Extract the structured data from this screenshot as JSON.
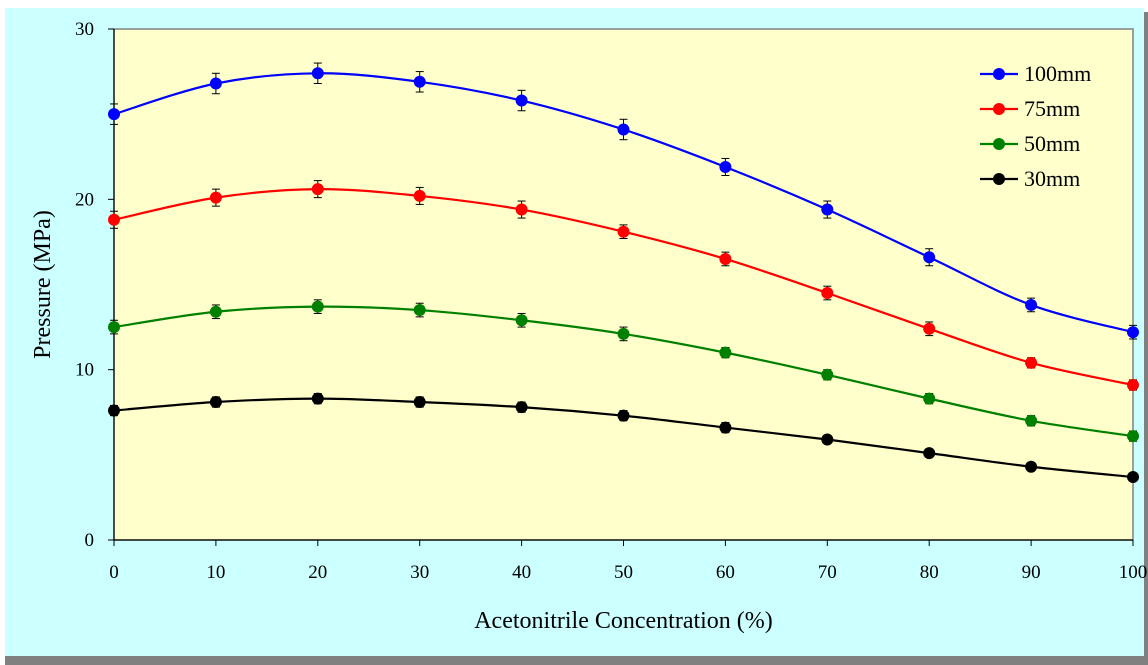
{
  "chart_data": {
    "type": "line",
    "xlabel": "Acetonitrile Concentration (%)",
    "ylabel": "Pressure (MPa)",
    "xlim": [
      0,
      100
    ],
    "ylim": [
      0,
      30
    ],
    "x_ticks": [
      "0",
      "10",
      "20",
      "30",
      "40",
      "50",
      "60",
      "70",
      "80",
      "90",
      "100"
    ],
    "y_ticks": [
      "0",
      "10",
      "20",
      "30"
    ],
    "grid": false,
    "legend_position": "top-right",
    "plot_background": "#ffffcc",
    "frame_background": "#ccffff",
    "x": [
      0,
      10,
      20,
      30,
      40,
      50,
      60,
      70,
      80,
      90,
      100
    ],
    "series": [
      {
        "name": "100mm",
        "color": "#0000ff",
        "values": [
          25.0,
          26.8,
          27.4,
          26.9,
          25.8,
          24.1,
          21.9,
          19.4,
          16.6,
          13.8,
          12.2
        ],
        "error": [
          0.6,
          0.6,
          0.6,
          0.6,
          0.6,
          0.6,
          0.5,
          0.5,
          0.5,
          0.4,
          0.4
        ]
      },
      {
        "name": "75mm",
        "color": "#ff0000",
        "values": [
          18.8,
          20.1,
          20.6,
          20.2,
          19.4,
          18.1,
          16.5,
          14.5,
          12.4,
          10.4,
          9.1
        ],
        "error": [
          0.5,
          0.5,
          0.5,
          0.5,
          0.5,
          0.4,
          0.4,
          0.4,
          0.4,
          0.3,
          0.3
        ]
      },
      {
        "name": "50mm",
        "color": "#008000",
        "values": [
          12.5,
          13.4,
          13.7,
          13.5,
          12.9,
          12.1,
          11.0,
          9.7,
          8.3,
          7.0,
          6.1
        ],
        "error": [
          0.4,
          0.4,
          0.4,
          0.4,
          0.4,
          0.4,
          0.3,
          0.3,
          0.3,
          0.3,
          0.3
        ]
      },
      {
        "name": "30mm",
        "color": "#000000",
        "values": [
          7.6,
          8.1,
          8.3,
          8.1,
          7.8,
          7.3,
          6.6,
          5.9,
          5.1,
          4.3,
          3.7
        ],
        "error": [
          0.3,
          0.3,
          0.3,
          0.3,
          0.3,
          0.3,
          0.3,
          0.2,
          0.2,
          0.2,
          0.2
        ]
      }
    ]
  }
}
